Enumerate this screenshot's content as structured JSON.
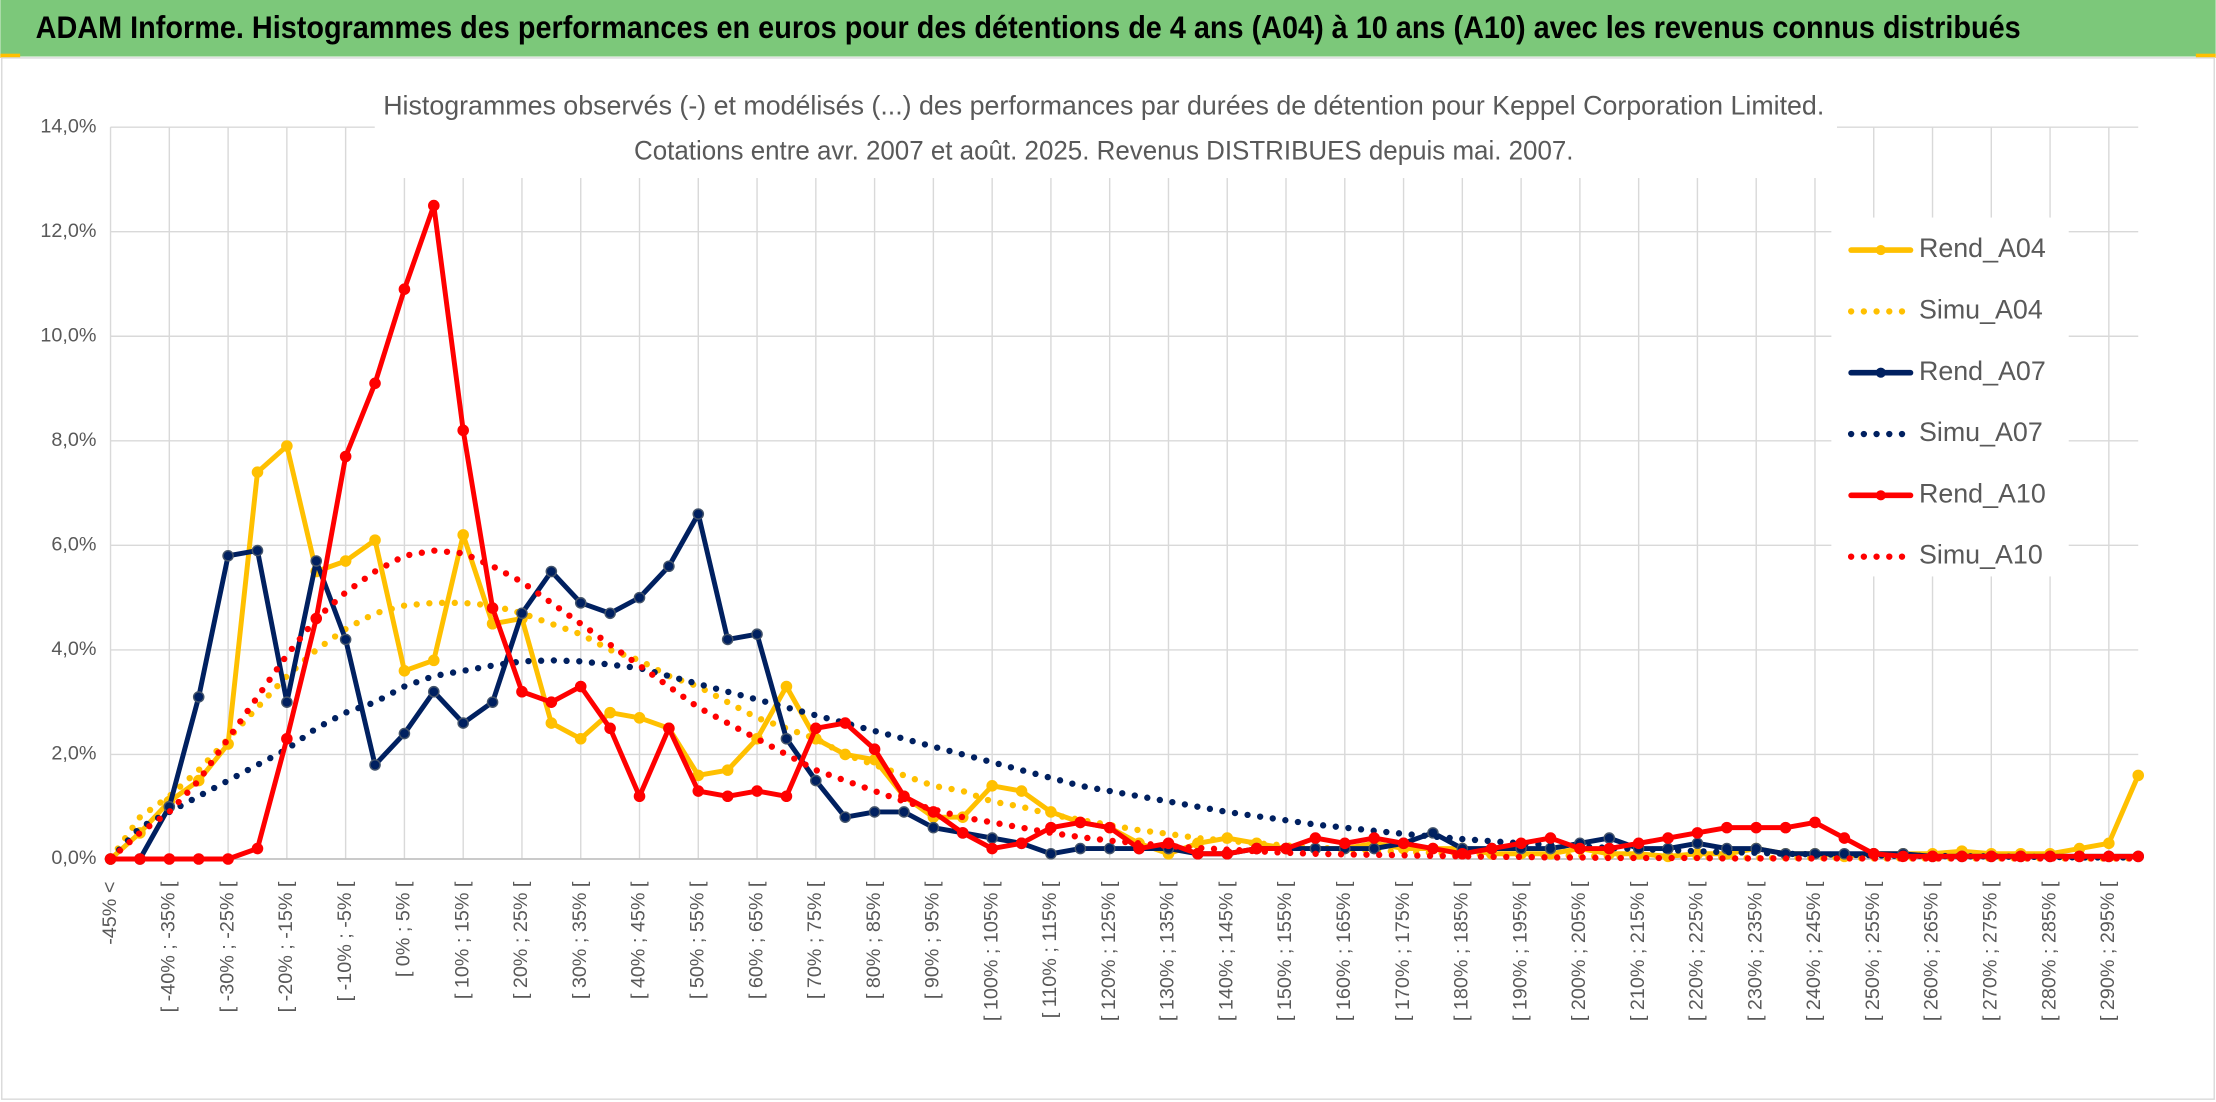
{
  "header": "ADAM Informe. Histogrammes des performances en euros pour des détentions de 4 ans (A04) à 10 ans (A10) avec les revenus connus distribués",
  "chart_data": {
    "type": "line",
    "title": "Histogrammes observés (-) et modélisés (...) des performances par durées de détention pour Keppel Corporation Limited.",
    "subtitle": "Cotations entre avr. 2007 et août. 2025. Revenus DISTRIBUES depuis mai. 2007.",
    "categories": [
      "-45% <",
      null,
      "[ -40% ; -35% [",
      null,
      "[ -30% ; -25% [",
      null,
      "[ -20% ; -15% [",
      null,
      "[ -10% ; -5% [",
      null,
      "[ 0% ; 5% [",
      null,
      "[ 10% ; 15% [",
      null,
      "[ 20% ; 25% [",
      null,
      "[ 30% ; 35% [",
      null,
      "[ 40% ; 45% [",
      null,
      "[ 50% ; 55% [",
      null,
      "[ 60% ; 65% [",
      null,
      "[ 70% ; 75% [",
      null,
      "[ 80% ; 85% [",
      null,
      "[ 90% ; 95% [",
      null,
      "[ 100% ; 105% [",
      null,
      "[ 110% ; 115% [",
      null,
      "[ 120% ; 125% [",
      null,
      "[ 130% ; 135% [",
      null,
      "[ 140% ; 145% [",
      null,
      "[ 150% ; 155% [",
      null,
      "[ 160% ; 165% [",
      null,
      "[ 170% ; 175% [",
      null,
      "[ 180% ; 185% [",
      null,
      "[ 190% ; 195% [",
      null,
      "[ 200% ; 205% [",
      null,
      "[ 210% ; 215% [",
      null,
      "[ 220% ; 225% [",
      null,
      "[ 230% ; 235% [",
      null,
      "[ 240% ; 245% [",
      null,
      "[ 250% ; 255% [",
      null,
      "[ 260% ; 265% [",
      null,
      "[ 270% ; 275% [",
      null,
      "[ 280% ; 285% [",
      null,
      "[ 290% ; 295% [",
      null
    ],
    "series": [
      {
        "name": "Rend_A04",
        "color": "#FFC000",
        "line_style": "solid",
        "markers": true,
        "values": [
          0,
          0.5,
          1.1,
          1.5,
          2.2,
          7.4,
          7.9,
          5.5,
          5.7,
          6.1,
          3.6,
          3.8,
          6.2,
          4.5,
          4.6,
          2.6,
          2.3,
          2.8,
          2.7,
          2.5,
          1.6,
          1.7,
          2.3,
          3.3,
          2.3,
          2.0,
          1.9,
          1.2,
          0.8,
          0.8,
          1.4,
          1.3,
          0.9,
          0.7,
          0.6,
          0.3,
          0.1,
          0.3,
          0.4,
          0.3,
          0.2,
          0.2,
          0.2,
          0.3,
          0.2,
          0.2,
          0.2,
          0.1,
          0.1,
          0.1,
          0.2,
          0.1,
          0.1,
          0.05,
          0.1,
          0.1,
          0.2,
          0.1,
          0.1,
          0.05,
          0.1,
          0.1,
          0.1,
          0.15,
          0.1,
          0.1,
          0.1,
          0.2,
          0.3,
          1.6
        ]
      },
      {
        "name": "Simu_A04",
        "color": "#FFC000",
        "line_style": "dotted",
        "markers": false,
        "values": [
          0,
          0.8,
          1.2,
          1.7,
          2.3,
          2.9,
          3.5,
          4.0,
          4.4,
          4.7,
          4.85,
          4.9,
          4.9,
          4.85,
          4.7,
          4.5,
          4.3,
          4.0,
          3.8,
          3.5,
          3.3,
          3.0,
          2.7,
          2.5,
          2.3,
          2.0,
          1.8,
          1.6,
          1.4,
          1.3,
          1.1,
          1.0,
          0.85,
          0.75,
          0.65,
          0.55,
          0.48,
          0.4,
          0.35,
          0.3,
          0.26,
          0.22,
          0.19,
          0.16,
          0.14,
          0.12,
          0.1,
          0.09,
          0.08,
          0.07,
          0.06,
          0.05,
          0.04,
          0.04,
          0.03,
          0.03,
          0.02,
          0.02,
          0.02,
          0.02,
          0.01,
          0.01,
          0.01,
          0.01,
          0.01,
          0.01,
          0.01,
          0.01,
          0.01,
          0.01
        ]
      },
      {
        "name": "Rend_A07",
        "color": "#002060",
        "line_style": "solid",
        "markers": true,
        "values": [
          0,
          0,
          1.0,
          3.1,
          5.8,
          5.9,
          3.0,
          5.7,
          4.2,
          1.8,
          2.4,
          3.2,
          2.6,
          3.0,
          4.7,
          5.5,
          4.9,
          4.7,
          5.0,
          5.6,
          6.6,
          4.2,
          4.3,
          2.3,
          1.5,
          0.8,
          0.9,
          0.9,
          0.6,
          0.5,
          0.4,
          0.3,
          0.1,
          0.2,
          0.2,
          0.2,
          0.2,
          0.1,
          0.1,
          0.2,
          0.2,
          0.2,
          0.2,
          0.2,
          0.3,
          0.5,
          0.2,
          0.2,
          0.2,
          0.2,
          0.3,
          0.4,
          0.2,
          0.2,
          0.3,
          0.2,
          0.2,
          0.1,
          0.1,
          0.1,
          0.1,
          0.1,
          0.05,
          0.05,
          0.05,
          0.05,
          0.05,
          0.05,
          0.05,
          0.05
        ]
      },
      {
        "name": "Simu_A07",
        "color": "#002060",
        "line_style": "dotted",
        "markers": false,
        "values": [
          0,
          0.6,
          0.9,
          1.2,
          1.5,
          1.8,
          2.1,
          2.5,
          2.8,
          3.0,
          3.3,
          3.5,
          3.6,
          3.7,
          3.78,
          3.8,
          3.78,
          3.72,
          3.65,
          3.5,
          3.35,
          3.2,
          3.05,
          2.9,
          2.75,
          2.6,
          2.45,
          2.3,
          2.15,
          2.0,
          1.85,
          1.7,
          1.55,
          1.4,
          1.3,
          1.2,
          1.1,
          1.0,
          0.9,
          0.82,
          0.74,
          0.66,
          0.6,
          0.54,
          0.48,
          0.43,
          0.38,
          0.34,
          0.3,
          0.27,
          0.24,
          0.21,
          0.19,
          0.17,
          0.15,
          0.13,
          0.12,
          0.1,
          0.09,
          0.08,
          0.07,
          0.06,
          0.06,
          0.05,
          0.05,
          0.04,
          0.04,
          0.03,
          0.03,
          0.03
        ]
      },
      {
        "name": "Rend_A10",
        "color": "#FF0000",
        "line_style": "solid",
        "markers": true,
        "values": [
          0,
          0,
          0,
          0,
          0,
          0.2,
          2.3,
          4.6,
          7.7,
          9.1,
          10.9,
          12.5,
          8.2,
          4.8,
          3.2,
          3.0,
          3.3,
          2.5,
          1.2,
          2.5,
          1.3,
          1.2,
          1.3,
          1.2,
          2.5,
          2.6,
          2.1,
          1.2,
          0.9,
          0.5,
          0.2,
          0.3,
          0.6,
          0.7,
          0.6,
          0.2,
          0.3,
          0.1,
          0.1,
          0.2,
          0.2,
          0.4,
          0.3,
          0.4,
          0.3,
          0.2,
          0.1,
          0.2,
          0.3,
          0.4,
          0.2,
          0.2,
          0.3,
          0.4,
          0.5,
          0.6,
          0.6,
          0.6,
          0.7,
          0.4,
          0.1,
          0.05,
          0.05,
          0.05,
          0.05,
          0.05,
          0.05,
          0.05,
          0.05,
          0.05
        ]
      },
      {
        "name": "Simu_A10",
        "color": "#FF0000",
        "line_style": "dotted",
        "markers": false,
        "values": [
          0,
          0.5,
          0.9,
          1.5,
          2.3,
          3.1,
          3.9,
          4.6,
          5.1,
          5.5,
          5.8,
          5.9,
          5.85,
          5.6,
          5.3,
          4.9,
          4.5,
          4.1,
          3.7,
          3.3,
          2.9,
          2.6,
          2.3,
          2.0,
          1.7,
          1.5,
          1.3,
          1.1,
          0.95,
          0.8,
          0.7,
          0.6,
          0.5,
          0.42,
          0.35,
          0.3,
          0.25,
          0.21,
          0.18,
          0.15,
          0.12,
          0.1,
          0.09,
          0.08,
          0.07,
          0.06,
          0.05,
          0.04,
          0.04,
          0.03,
          0.03,
          0.02,
          0.02,
          0.02,
          0.02,
          0.01,
          0.01,
          0.01,
          0.01,
          0.01,
          0.01,
          0.01,
          0.01,
          0.01,
          0.01,
          0.01,
          0.01,
          0.01,
          0.01,
          0.01
        ]
      }
    ],
    "ylim": [
      0,
      14
    ],
    "yticks": [
      {
        "value": 0,
        "label": "0,0%"
      },
      {
        "value": 2,
        "label": "2,0%"
      },
      {
        "value": 4,
        "label": "4,0%"
      },
      {
        "value": 6,
        "label": "6,0%"
      },
      {
        "value": 8,
        "label": "8,0%"
      },
      {
        "value": 10,
        "label": "10,0%"
      },
      {
        "value": 12,
        "label": "12,0%"
      },
      {
        "value": 14,
        "label": "14,0%"
      }
    ],
    "grid": true,
    "legend": "right"
  }
}
